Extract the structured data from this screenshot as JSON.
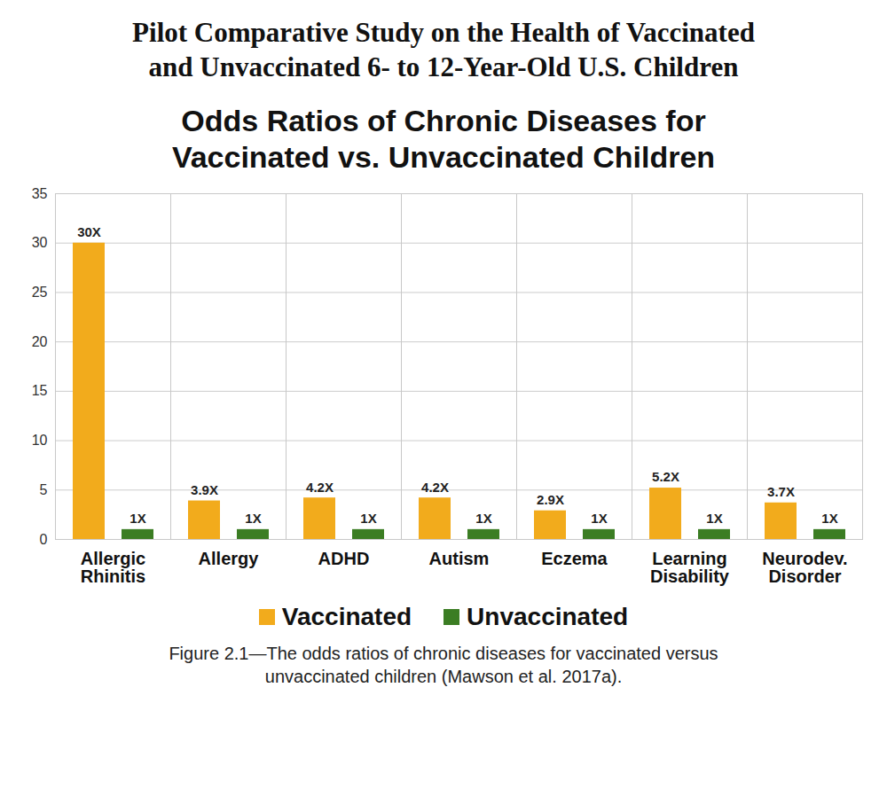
{
  "chart_data": {
    "type": "bar",
    "title": "Pilot Comparative Study on the Health of Vaccinated and Unvaccinated 6- to 12-Year-Old U.S. Children",
    "subtitle": "Odds Ratios of Chronic Diseases for Vaccinated vs. Unvaccinated Children",
    "caption": "Figure 2.1—The odds ratios of chronic diseases for vaccinated versus unvaccinated children (Mawson et al. 2017a).",
    "categories": [
      "Allergic Rhinitis",
      "Allergy",
      "ADHD",
      "Autism",
      "Eczema",
      "Learning Disability",
      "Neurodev. Disorder"
    ],
    "series": [
      {
        "name": "Vaccinated",
        "color": "#f2ab1c",
        "values": [
          30,
          3.9,
          4.2,
          4.2,
          2.9,
          5.2,
          3.7
        ],
        "value_labels": [
          "30X",
          "3.9X",
          "4.2X",
          "4.2X",
          "2.9X",
          "5.2X",
          "3.7X"
        ]
      },
      {
        "name": "Unvaccinated",
        "color": "#3b7d23",
        "values": [
          1,
          1,
          1,
          1,
          1,
          1,
          1
        ],
        "value_labels": [
          "1X",
          "1X",
          "1X",
          "1X",
          "1X",
          "1X",
          "1X"
        ]
      }
    ],
    "ylim": [
      0,
      35
    ],
    "yticks": [
      0,
      5,
      10,
      15,
      20,
      25,
      30,
      35
    ],
    "grid": true,
    "legend": "bottom",
    "data_labels": true
  }
}
